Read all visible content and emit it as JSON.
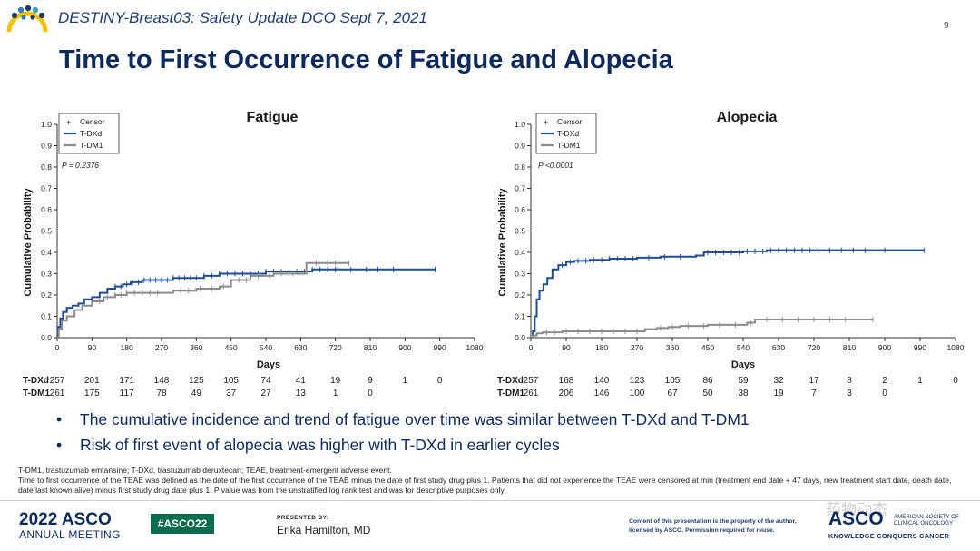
{
  "header": {
    "conference_title": "DESTINY-Breast03: Safety Update DCO Sept 7, 2021",
    "page_number": "9"
  },
  "main_title": "Time to First Occurrence of Fatigue and Alopecia",
  "colors": {
    "navy": "#0d2a5c",
    "tdxd": "#1f4e96",
    "tdm1": "#8c8c8c",
    "asco_green": "#0a6b4e"
  },
  "chart_data": [
    {
      "type": "line",
      "title": "Fatigue",
      "xlabel": "Days",
      "ylabel": "Cumulative Probability",
      "xlim": [
        0,
        1080
      ],
      "ylim": [
        0,
        1.0
      ],
      "x_ticks": [
        "0",
        "90",
        "180",
        "270",
        "360",
        "450",
        "540",
        "630",
        "720",
        "810",
        "900",
        "990",
        "1080"
      ],
      "y_ticks": [
        "0.0",
        "0.1",
        "0.2",
        "0.3",
        "0.4",
        "0.5",
        "0.6",
        "0.7",
        "0.8",
        "0.9",
        "1.0"
      ],
      "annotation": "P = 0.2376",
      "legend": {
        "position": "top-left",
        "entries": [
          "Censor",
          "T-DXd",
          "T-DM1"
        ]
      },
      "series": [
        {
          "name": "T-DXd",
          "color": "#1f4e96",
          "points": [
            [
              0,
              0
            ],
            [
              3,
              0.05
            ],
            [
              8,
              0.09
            ],
            [
              15,
              0.12
            ],
            [
              25,
              0.14
            ],
            [
              40,
              0.15
            ],
            [
              55,
              0.16
            ],
            [
              70,
              0.18
            ],
            [
              90,
              0.19
            ],
            [
              110,
              0.21
            ],
            [
              130,
              0.23
            ],
            [
              150,
              0.24
            ],
            [
              170,
              0.25
            ],
            [
              190,
              0.26
            ],
            [
              220,
              0.27
            ],
            [
              260,
              0.27
            ],
            [
              300,
              0.28
            ],
            [
              340,
              0.28
            ],
            [
              380,
              0.29
            ],
            [
              420,
              0.3
            ],
            [
              480,
              0.3
            ],
            [
              540,
              0.31
            ],
            [
              600,
              0.31
            ],
            [
              660,
              0.32
            ],
            [
              760,
              0.32
            ],
            [
              870,
              0.32
            ],
            [
              978,
              0.32
            ]
          ],
          "censor_x": [
            150,
            165,
            180,
            195,
            210,
            225,
            240,
            255,
            270,
            285,
            300,
            315,
            330,
            345,
            360,
            380,
            400,
            420,
            440,
            460,
            480,
            500,
            520,
            540,
            560,
            580,
            600,
            620,
            640,
            660,
            680,
            700,
            720,
            760,
            800,
            830,
            870,
            978
          ]
        },
        {
          "name": "T-DM1",
          "color": "#8c8c8c",
          "points": [
            [
              0,
              0
            ],
            [
              4,
              0.04
            ],
            [
              12,
              0.08
            ],
            [
              25,
              0.1
            ],
            [
              45,
              0.13
            ],
            [
              65,
              0.15
            ],
            [
              90,
              0.17
            ],
            [
              120,
              0.19
            ],
            [
              150,
              0.2
            ],
            [
              180,
              0.21
            ],
            [
              270,
              0.21
            ],
            [
              300,
              0.22
            ],
            [
              360,
              0.23
            ],
            [
              420,
              0.24
            ],
            [
              450,
              0.27
            ],
            [
              500,
              0.29
            ],
            [
              560,
              0.3
            ],
            [
              640,
              0.3
            ],
            [
              645,
              0.35
            ],
            [
              710,
              0.35
            ],
            [
              755,
              0.35
            ]
          ],
          "censor_x": [
            110,
            130,
            150,
            165,
            180,
            200,
            220,
            240,
            260,
            320,
            340,
            370,
            400,
            430,
            470,
            490,
            520,
            550,
            580,
            610,
            670,
            700,
            720,
            755
          ]
        }
      ],
      "risk_table": {
        "rows": [
          {
            "label": "T-DXd",
            "values": [
              "257",
              "201",
              "171",
              "148",
              "125",
              "105",
              "74",
              "41",
              "19",
              "9",
              "1",
              "0"
            ]
          },
          {
            "label": "T-DM1",
            "values": [
              "261",
              "175",
              "117",
              "78",
              "49",
              "37",
              "27",
              "13",
              "1",
              "0"
            ]
          }
        ]
      }
    },
    {
      "type": "line",
      "title": "Alopecia",
      "xlabel": "Days",
      "ylabel": "Cumulative Probability",
      "xlim": [
        0,
        1080
      ],
      "ylim": [
        0,
        1.0
      ],
      "x_ticks": [
        "0",
        "90",
        "180",
        "270",
        "360",
        "450",
        "540",
        "630",
        "720",
        "810",
        "900",
        "990",
        "1080"
      ],
      "y_ticks": [
        "0.0",
        "0.1",
        "0.2",
        "0.3",
        "0.4",
        "0.5",
        "0.6",
        "0.7",
        "0.8",
        "0.9",
        "1.0"
      ],
      "annotation": "P <0.0001",
      "legend": {
        "position": "top-left",
        "entries": [
          "Censor",
          "T-DXd",
          "T-DM1"
        ]
      },
      "series": [
        {
          "name": "T-DXd",
          "color": "#1f4e96",
          "points": [
            [
              0,
              0
            ],
            [
              5,
              0.03
            ],
            [
              10,
              0.1
            ],
            [
              15,
              0.18
            ],
            [
              22,
              0.22
            ],
            [
              32,
              0.25
            ],
            [
              42,
              0.28
            ],
            [
              55,
              0.32
            ],
            [
              70,
              0.34
            ],
            [
              90,
              0.355
            ],
            [
              110,
              0.36
            ],
            [
              150,
              0.365
            ],
            [
              200,
              0.37
            ],
            [
              270,
              0.375
            ],
            [
              330,
              0.38
            ],
            [
              420,
              0.385
            ],
            [
              440,
              0.4
            ],
            [
              540,
              0.405
            ],
            [
              600,
              0.41
            ],
            [
              700,
              0.41
            ],
            [
              800,
              0.41
            ],
            [
              900,
              0.41
            ],
            [
              1000,
              0.41
            ]
          ],
          "censor_x": [
            80,
            100,
            120,
            140,
            160,
            180,
            200,
            220,
            240,
            260,
            300,
            340,
            380,
            450,
            470,
            490,
            510,
            530,
            550,
            570,
            590,
            610,
            630,
            650,
            670,
            690,
            710,
            730,
            760,
            790,
            820,
            850,
            900,
            1000
          ]
        },
        {
          "name": "T-DM1",
          "color": "#8c8c8c",
          "points": [
            [
              0,
              0
            ],
            [
              5,
              0.01
            ],
            [
              15,
              0.02
            ],
            [
              30,
              0.025
            ],
            [
              80,
              0.03
            ],
            [
              200,
              0.03
            ],
            [
              290,
              0.04
            ],
            [
              320,
              0.045
            ],
            [
              350,
              0.05
            ],
            [
              380,
              0.055
            ],
            [
              450,
              0.06
            ],
            [
              550,
              0.07
            ],
            [
              570,
              0.085
            ],
            [
              870,
              0.085
            ]
          ],
          "censor_x": [
            40,
            60,
            90,
            120,
            150,
            180,
            210,
            240,
            270,
            330,
            360,
            400,
            440,
            480,
            520,
            560,
            600,
            640,
            680,
            720,
            760,
            800,
            870
          ]
        }
      ],
      "risk_table": {
        "rows": [
          {
            "label": "T-DXd",
            "values": [
              "257",
              "168",
              "140",
              "123",
              "105",
              "86",
              "59",
              "32",
              "17",
              "8",
              "2",
              "1",
              "0"
            ]
          },
          {
            "label": "T-DM1",
            "values": [
              "261",
              "206",
              "146",
              "100",
              "67",
              "50",
              "38",
              "19",
              "7",
              "3",
              "0"
            ]
          }
        ]
      }
    }
  ],
  "bullets": [
    "The cumulative incidence and trend of fatigue over time was similar between T-DXd and T-DM1",
    "Risk of first event of alopecia was higher with T-DXd in earlier cycles"
  ],
  "bullet_glyph": "•",
  "footnote": {
    "abbreviations": "T-DM1, trastuzumab emtansine; T-DXd, trastuzumab deruxtecan; TEAE, treatment-emergent adverse event.",
    "definition": "Time to first occurrence of the TEAE was defined as the date of the first occurrence of the TEAE minus the date of first study drug plus 1. Patients that did not experience the TEAE were censored at min (treatment end date + 47 days, new treatment start date, death date, date last known alive) minus first study drug date plus 1. P value was from the unstratified log rank test and was for descriptive purposes only."
  },
  "footer": {
    "meeting_year_asco": "2022 ASCO",
    "meeting_label": "ANNUAL MEETING",
    "hashtag": "#ASCO22",
    "presented_by_label": "PRESENTED BY:",
    "presenter": "Erika Hamilton, MD",
    "copyright": "Content of this presentation is the property of the author, licensed by ASCO. Permission required for reuse.",
    "asco_logo_text": "ASCO",
    "asco_society": "AMERICAN SOCIETY OF CLINICAL ONCOLOGY",
    "asco_tagline": "KNOWLEDGE CONQUERS CANCER",
    "watermark": "药物动态"
  }
}
